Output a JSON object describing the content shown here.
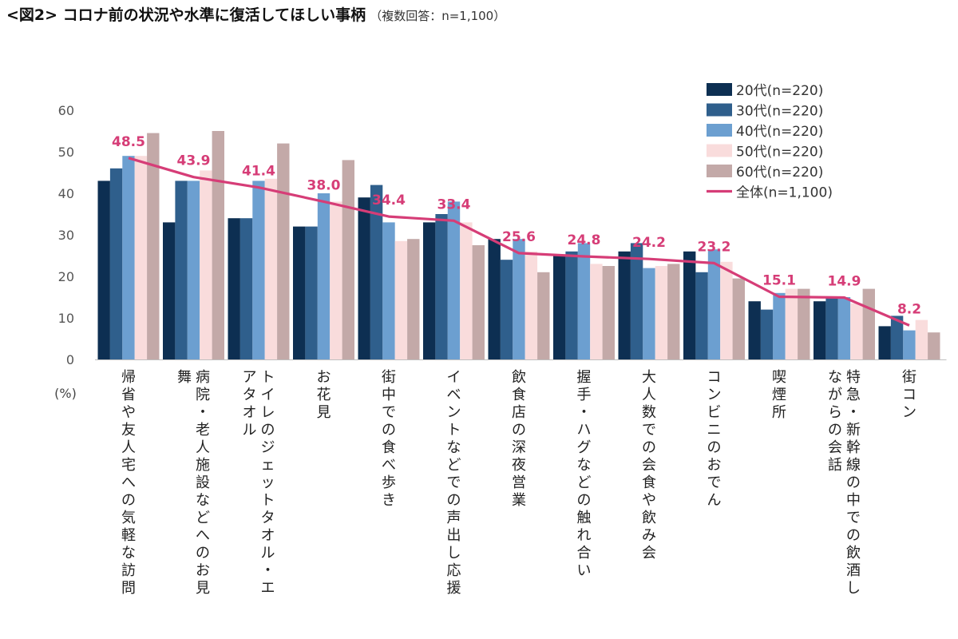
{
  "title": "<図2> コロナ前の状況や水準に復活してほしい事柄",
  "note": "（複数回答：n=1,100）",
  "chart_data": {
    "type": "bar",
    "title": "<図2> コロナ前の状況や水準に復活してほしい事柄",
    "subtitle": "（複数回答：n=1,100）",
    "ylabel": "(%)",
    "ylim": [
      0,
      60
    ],
    "yticks": [
      0,
      10,
      20,
      30,
      40,
      50,
      60
    ],
    "grid": false,
    "legend_position": "top-right",
    "categories": [
      "帰省や友人宅への気軽な訪問",
      "病院・老人施設などへのお見舞",
      "トイレのジェットタオル・エアタオル",
      "お花見",
      "街中での食べ歩き",
      "イベントなどでの声出し応援",
      "飲食店の深夜営業",
      "握手・ハグなどの触れ合い",
      "大人数での会食や飲み会",
      "コンビニのおでん",
      "喫煙所",
      "特急・新幹線の中での飲酒しながらの会話",
      "街コン"
    ],
    "series": [
      {
        "name": "20代(n=220)",
        "color": "#0d2f52",
        "values": [
          43,
          33,
          34,
          32,
          39,
          33,
          29,
          25,
          26,
          26,
          14,
          14,
          8
        ]
      },
      {
        "name": "30代(n=220)",
        "color": "#2f5f8c",
        "values": [
          46,
          43,
          34,
          32,
          42,
          35,
          24,
          26,
          28,
          21,
          12,
          15,
          10.5
        ]
      },
      {
        "name": "40代(n=220)",
        "color": "#6c9fd0",
        "values": [
          49,
          43,
          43,
          40,
          33,
          38,
          29,
          28,
          22,
          26.5,
          16,
          15,
          7
        ]
      },
      {
        "name": "50代(n=220)",
        "color": "#f9dcdc",
        "values": [
          49,
          45.5,
          43.5,
          38,
          28.5,
          33,
          26,
          23,
          22.5,
          23.5,
          17,
          13.5,
          9.5
        ]
      },
      {
        "name": "60代(n=220)",
        "color": "#c3a9a8",
        "values": [
          54.5,
          55,
          52,
          48,
          29,
          27.5,
          21,
          22.5,
          23,
          19.5,
          17,
          17,
          6.5
        ]
      }
    ],
    "line": {
      "name": "全体(n=1,100)",
      "color": "#d63d77",
      "values": [
        48.5,
        43.9,
        41.4,
        38.0,
        34.4,
        33.4,
        25.6,
        24.8,
        24.2,
        23.2,
        15.1,
        14.9,
        8.2
      ],
      "labels": [
        "48.5",
        "43.9",
        "41.4",
        "38.0",
        "34.4",
        "33.4",
        "25.6",
        "24.8",
        "24.2",
        "23.2",
        "15.1",
        "14.9",
        "8.2"
      ]
    }
  }
}
